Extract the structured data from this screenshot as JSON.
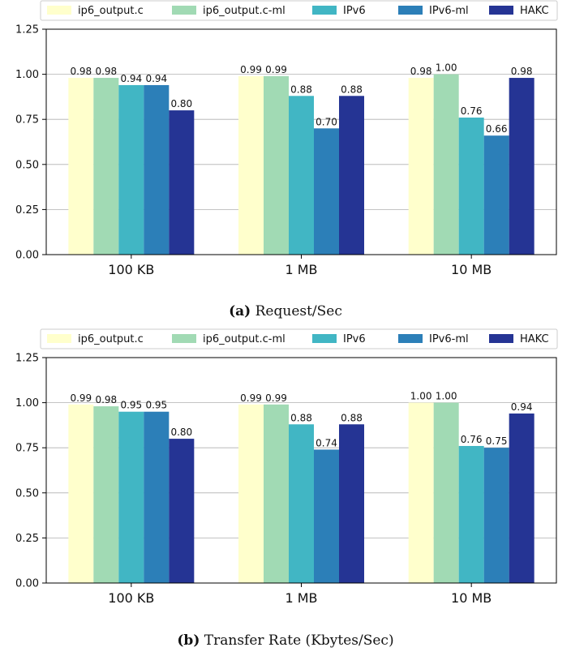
{
  "colors": {
    "ip6_output.c": "#ffffcc",
    "ip6_output.c-ml": "#a1dab4",
    "IPv6": "#41b6c4",
    "IPv6-ml": "#2c7fb8",
    "HAKC": "#253494"
  },
  "chart_data": [
    {
      "type": "bar",
      "caption_label": "(a)",
      "caption_text": "Request/Sec",
      "categories": [
        "100 KB",
        "1 MB",
        "10 MB"
      ],
      "ylim": [
        0,
        1.25
      ],
      "yticks": [
        "0.00",
        "0.25",
        "0.50",
        "0.75",
        "1.00",
        "1.25"
      ],
      "grid": true,
      "legend_placement": "top",
      "series": [
        {
          "name": "ip6_output.c",
          "values": [
            0.98,
            0.99,
            0.98
          ],
          "labels": [
            "0.98",
            "0.99",
            "0.98"
          ]
        },
        {
          "name": "ip6_output.c-ml",
          "values": [
            0.98,
            0.99,
            1.0
          ],
          "labels": [
            "0.98",
            "0.99",
            "1.00"
          ]
        },
        {
          "name": "IPv6",
          "values": [
            0.94,
            0.88,
            0.76
          ],
          "labels": [
            "0.94",
            "0.88",
            "0.76"
          ]
        },
        {
          "name": "IPv6-ml",
          "values": [
            0.94,
            0.7,
            0.66
          ],
          "labels": [
            "0.94",
            "0.70",
            "0.66"
          ]
        },
        {
          "name": "HAKC",
          "values": [
            0.8,
            0.88,
            0.98
          ],
          "labels": [
            "0.80",
            "0.88",
            "0.98"
          ]
        }
      ]
    },
    {
      "type": "bar",
      "caption_label": "(b)",
      "caption_text": "Transfer Rate (Kbytes/Sec)",
      "categories": [
        "100 KB",
        "1 MB",
        "10 MB"
      ],
      "ylim": [
        0,
        1.25
      ],
      "yticks": [
        "0.00",
        "0.25",
        "0.50",
        "0.75",
        "1.00",
        "1.25"
      ],
      "grid": true,
      "legend_placement": "top",
      "series": [
        {
          "name": "ip6_output.c",
          "values": [
            0.99,
            0.99,
            1.0
          ],
          "labels": [
            "0.99",
            "0.99",
            "1.00"
          ]
        },
        {
          "name": "ip6_output.c-ml",
          "values": [
            0.98,
            0.99,
            1.0
          ],
          "labels": [
            "0.98",
            "0.99",
            "1.00"
          ]
        },
        {
          "name": "IPv6",
          "values": [
            0.95,
            0.88,
            0.76
          ],
          "labels": [
            "0.95",
            "0.88",
            "0.76"
          ]
        },
        {
          "name": "IPv6-ml",
          "values": [
            0.95,
            0.74,
            0.75
          ],
          "labels": [
            "0.95",
            "0.74",
            "0.75"
          ]
        },
        {
          "name": "HAKC",
          "values": [
            0.8,
            0.88,
            0.94
          ],
          "labels": [
            "0.80",
            "0.88",
            "0.94"
          ]
        }
      ]
    }
  ]
}
